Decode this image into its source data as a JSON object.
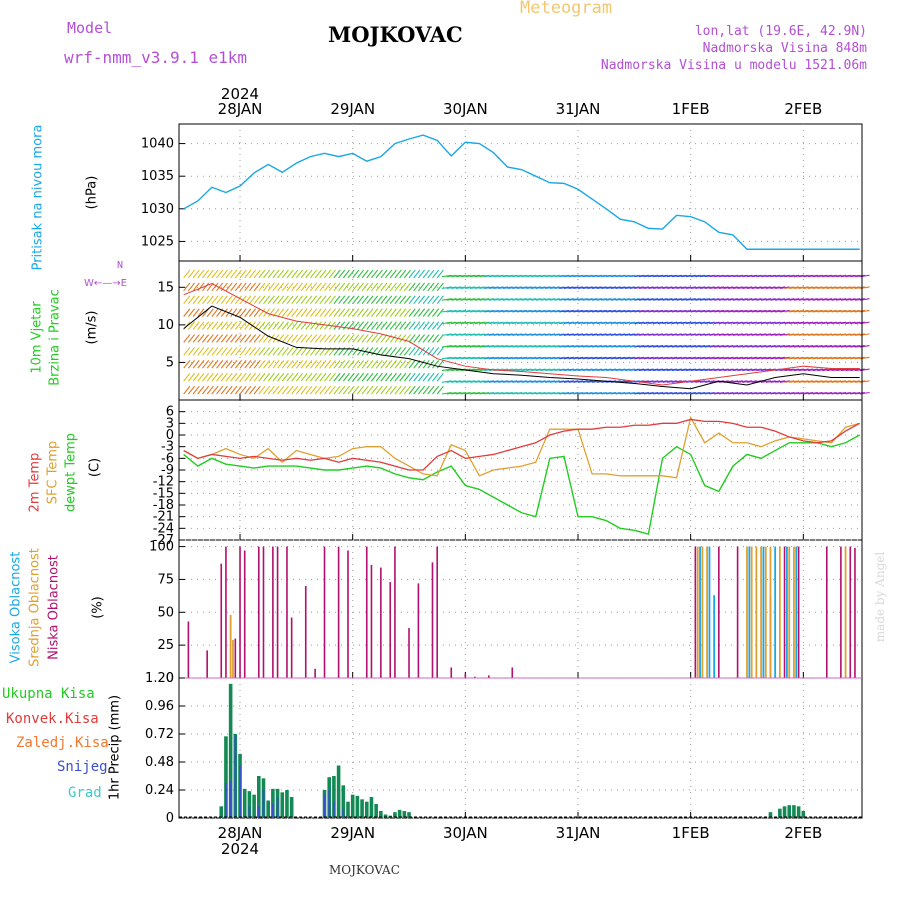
{
  "header": {
    "model_label": "Model",
    "model_name": "wrf-nmm_v3.9.1 e1km",
    "station": "MOJKOVAC",
    "title": "Meteogram",
    "lonlat": "lon,lat (19.6E, 42.9N)",
    "altitude": "Nadmorska Visina 848m",
    "model_altitude": "Nadmorska Visina u modelu 1521.06m"
  },
  "footer": {
    "station": "MOJKOVAC",
    "credit": "made by Angel"
  },
  "colors": {
    "pressure": "#1aa7e6",
    "temp2m": "#e03c3c",
    "sfc_temp": "#e0a030",
    "dewpt": "#22cc22",
    "low_cloud": "#b0106e",
    "mid_cloud": "#e0a030",
    "high_cloud": "#1aa7e6",
    "total_precip": "#138a55",
    "conv_precip": "#e03c3c",
    "snow": "#3a4fd0",
    "purple_text": "#b44fd6"
  },
  "chart_data": [
    {
      "id": "pressure",
      "type": "line",
      "ylabel_name": "Pritisak na nivou mora",
      "ylabel_unit": "(hPa)",
      "ylim": [
        1022,
        1043
      ],
      "yticks": [
        1025,
        1030,
        1035,
        1040
      ],
      "x_hours": [
        0,
        3,
        6,
        9,
        12,
        15,
        18,
        21,
        24,
        27,
        30,
        33,
        36,
        39,
        42,
        45,
        48,
        51,
        54,
        57,
        60,
        63,
        66,
        69,
        72,
        75,
        78,
        81,
        84,
        87,
        90,
        93,
        96,
        99,
        102,
        105,
        108,
        111,
        114,
        117,
        120,
        123,
        126,
        129,
        132,
        135,
        138,
        141,
        144
      ],
      "values": [
        1030.0,
        1031.2,
        1033.3,
        1032.5,
        1033.5,
        1035.5,
        1036.8,
        1035.6,
        1037.0,
        1038.0,
        1038.5,
        1038.0,
        1038.5,
        1037.3,
        1038.0,
        1040.0,
        1040.7,
        1041.3,
        1040.5,
        1038.1,
        1040.2,
        1040.0,
        1038.6,
        1036.4,
        1036.0,
        1035.0,
        1034.0,
        1033.9,
        1033.0,
        1031.5,
        1030.0,
        1028.4,
        1028.0,
        1027.0,
        1026.9,
        1029.0,
        1028.8,
        1028.0,
        1026.4,
        1026.0,
        1023.8,
        1023.8,
        1023.8,
        1023.8,
        1023.8,
        1023.8,
        1023.8,
        1023.8,
        1023.8
      ]
    },
    {
      "id": "wind",
      "type": "line",
      "ylabel_name": "10m Vjetar",
      "ylabel_name2": "Brzina i Pravac",
      "ylabel_unit": "(m/s)",
      "compass": "N",
      "ylim": [
        0,
        18.5
      ],
      "yticks": [
        5,
        10,
        15
      ],
      "x_hours": [
        0,
        6,
        12,
        18,
        24,
        30,
        36,
        42,
        48,
        54,
        60,
        66,
        72,
        78,
        84,
        90,
        96,
        102,
        108,
        114,
        120,
        126,
        132,
        138,
        144
      ],
      "speed": [
        9.5,
        12.5,
        11.0,
        8.5,
        7.0,
        6.8,
        6.8,
        6.0,
        5.5,
        4.5,
        4.0,
        3.5,
        3.3,
        3.0,
        2.8,
        2.5,
        2.2,
        1.8,
        1.5,
        2.5,
        2.0,
        3.0,
        3.5,
        3.0,
        3.0
      ],
      "gust": [
        14.0,
        15.5,
        13.5,
        11.5,
        10.5,
        10.0,
        9.5,
        8.8,
        7.8,
        5.5,
        4.5,
        4.0,
        3.8,
        3.5,
        3.2,
        3.0,
        2.5,
        2.0,
        2.5,
        3.0,
        3.5,
        4.0,
        4.5,
        4.2,
        4.2
      ]
    },
    {
      "id": "temperature",
      "type": "line",
      "ylabel_series": [
        "2m Temp",
        "SFC Temp",
        "dewpt Temp"
      ],
      "ylabel_unit": "(C)",
      "ylim": [
        -27,
        9
      ],
      "yticks": [
        6,
        3,
        0,
        -3,
        -6,
        -9,
        -12,
        -15,
        -18,
        -21,
        -24,
        -27
      ],
      "x_hours": [
        0,
        3,
        6,
        9,
        12,
        15,
        18,
        21,
        24,
        27,
        30,
        33,
        36,
        39,
        42,
        45,
        48,
        51,
        54,
        57,
        60,
        63,
        66,
        69,
        72,
        75,
        78,
        81,
        84,
        87,
        90,
        93,
        96,
        99,
        102,
        105,
        108,
        111,
        114,
        117,
        120,
        123,
        126,
        129,
        132,
        135,
        138,
        141,
        144
      ],
      "temp2m": [
        -4,
        -6,
        -5,
        -5.5,
        -6,
        -5.5,
        -6,
        -6.5,
        -6,
        -6.5,
        -6,
        -7,
        -6,
        -6.5,
        -7,
        -8,
        -9,
        -9,
        -5.5,
        -4,
        -6,
        -5.5,
        -5,
        -4,
        -3,
        -2,
        0,
        1,
        1.5,
        1.5,
        2,
        2,
        2.5,
        2.5,
        3,
        3,
        4,
        3.5,
        3.5,
        3,
        2,
        2,
        1,
        -0.5,
        -1.5,
        -2,
        -1.5,
        1,
        3
      ],
      "sfc_temp": [
        -4,
        -6,
        -5,
        -3.5,
        -5,
        -6,
        -3.5,
        -7,
        -4,
        -5,
        -6,
        -5.5,
        -3.5,
        -3,
        -3,
        -6,
        -8,
        -10,
        -10.5,
        -2.5,
        -4,
        -10.5,
        -9,
        -8.5,
        -8,
        -7,
        1.5,
        1.5,
        1.5,
        -10,
        -10,
        -10.5,
        -10.5,
        -10.5,
        -10.5,
        -11,
        4.5,
        -2,
        0.5,
        -2,
        -2,
        -3,
        -1.5,
        -0.5,
        -1,
        -1.5,
        -2,
        2,
        3
      ],
      "dewpt": [
        -5,
        -8,
        -6,
        -7.5,
        -8,
        -8.5,
        -8,
        -8,
        -8,
        -8.5,
        -9,
        -9,
        -8.5,
        -8,
        -8.5,
        -10,
        -11,
        -11.5,
        -9.5,
        -8,
        -13,
        -14,
        -16,
        -18,
        -20,
        -21,
        -6,
        -5.5,
        -21,
        -21,
        -22,
        -24,
        -24.5,
        -25.5,
        -6,
        -3,
        -5,
        -13,
        -14.5,
        -8,
        -5,
        -6,
        -4,
        -2,
        -2,
        -2,
        -3,
        -2,
        0
      ]
    },
    {
      "id": "clouds",
      "type": "bar",
      "ylabel_series": [
        "Visoka Oblacnost",
        "Srednja Oblacnost",
        "Niska Oblacnost"
      ],
      "ylabel_unit": "(%)",
      "ylim": [
        0,
        105
      ],
      "yticks": [
        0,
        25,
        50,
        75,
        100
      ],
      "low": [
        [
          1,
          43
        ],
        [
          5,
          21
        ],
        [
          8,
          87
        ],
        [
          9,
          100
        ],
        [
          11,
          30
        ],
        [
          12,
          100
        ],
        [
          13,
          97
        ],
        [
          16,
          100
        ],
        [
          17,
          100
        ],
        [
          19,
          100
        ],
        [
          20,
          100
        ],
        [
          22,
          100
        ],
        [
          23,
          46
        ],
        [
          26,
          70
        ],
        [
          28,
          7
        ],
        [
          30,
          100
        ],
        [
          33,
          100
        ],
        [
          35,
          97
        ],
        [
          39,
          100
        ],
        [
          40,
          86
        ],
        [
          42,
          84
        ],
        [
          44,
          73
        ],
        [
          45,
          100
        ],
        [
          48,
          38
        ],
        [
          50,
          72
        ],
        [
          53,
          88
        ],
        [
          54,
          100
        ],
        [
          57,
          8
        ],
        [
          60,
          3
        ],
        [
          62,
          1
        ],
        [
          65,
          2
        ],
        [
          70,
          8
        ],
        [
          109,
          100
        ],
        [
          114,
          100
        ],
        [
          118,
          100
        ],
        [
          125,
          62
        ],
        [
          128,
          100
        ],
        [
          131,
          100
        ],
        [
          137,
          100
        ],
        [
          140,
          100
        ],
        [
          142,
          100
        ],
        [
          143,
          99
        ]
      ],
      "mid": [
        [
          10,
          48
        ],
        [
          10.5,
          29
        ],
        [
          109.5,
          100
        ],
        [
          110.5,
          100
        ],
        [
          111.5,
          100
        ],
        [
          120,
          100
        ],
        [
          121,
          100
        ],
        [
          122,
          100
        ],
        [
          123,
          100
        ],
        [
          124,
          100
        ],
        [
          125,
          100
        ],
        [
          127,
          100
        ],
        [
          129,
          100
        ],
        [
          130,
          100
        ],
        [
          141,
          100
        ]
      ],
      "high": [
        [
          110,
          100
        ],
        [
          112,
          100
        ],
        [
          113,
          63
        ],
        [
          120.5,
          100
        ],
        [
          123.5,
          100
        ],
        [
          126,
          100
        ],
        [
          128.5,
          100
        ],
        [
          130.5,
          100
        ]
      ]
    },
    {
      "id": "precip",
      "type": "bar",
      "ylabel_series": [
        "Ukupna Kisa",
        "Konvek.Kisa",
        "Zaledj.Kisa",
        "Snijeg",
        "Grad"
      ],
      "ylabel_unit": "1hr Precip (mm)",
      "ylim": [
        0,
        1.2
      ],
      "yticks": [
        0,
        0.24,
        0.48,
        0.72,
        0.96,
        1.2
      ],
      "total": [
        [
          8,
          0.1
        ],
        [
          9,
          0.7
        ],
        [
          10,
          1.15
        ],
        [
          11,
          0.72
        ],
        [
          12,
          0.55
        ],
        [
          13,
          0.25
        ],
        [
          14,
          0.23
        ],
        [
          15,
          0.2
        ],
        [
          16,
          0.36
        ],
        [
          17,
          0.34
        ],
        [
          18,
          0.15
        ],
        [
          19,
          0.25
        ],
        [
          20,
          0.25
        ],
        [
          21,
          0.22
        ],
        [
          22,
          0.24
        ],
        [
          23,
          0.18
        ],
        [
          30,
          0.24
        ],
        [
          31,
          0.35
        ],
        [
          32,
          0.36
        ],
        [
          33,
          0.45
        ],
        [
          34,
          0.28
        ],
        [
          35,
          0.14
        ],
        [
          36,
          0.2
        ],
        [
          37,
          0.19
        ],
        [
          38,
          0.16
        ],
        [
          39,
          0.14
        ],
        [
          40,
          0.18
        ],
        [
          41,
          0.12
        ],
        [
          42,
          0.06
        ],
        [
          43,
          0.03
        ],
        [
          44,
          0.02
        ],
        [
          45,
          0.05
        ],
        [
          46,
          0.07
        ],
        [
          47,
          0.06
        ],
        [
          48,
          0.05
        ],
        [
          125,
          0.05
        ],
        [
          127,
          0.08
        ],
        [
          128,
          0.1
        ],
        [
          129,
          0.11
        ],
        [
          130,
          0.11
        ],
        [
          131,
          0.1
        ],
        [
          132,
          0.06
        ]
      ],
      "snow": [
        [
          9,
          0.3
        ],
        [
          10,
          0.32
        ],
        [
          11,
          0.71
        ],
        [
          12,
          0.45
        ],
        [
          14,
          0.1
        ],
        [
          16,
          0.1
        ],
        [
          17,
          0.24
        ],
        [
          19,
          0.12
        ],
        [
          20,
          0.18
        ],
        [
          30,
          0.2
        ],
        [
          31,
          0.24
        ],
        [
          32,
          0.14
        ],
        [
          34,
          0.08
        ]
      ]
    }
  ],
  "x_axis": {
    "year": "2024",
    "day_labels": [
      "28JAN",
      "29JAN",
      "30JAN",
      "31JAN",
      "1FEB",
      "2FEB"
    ],
    "day_hours": [
      12,
      36,
      60,
      84,
      108,
      132
    ]
  }
}
